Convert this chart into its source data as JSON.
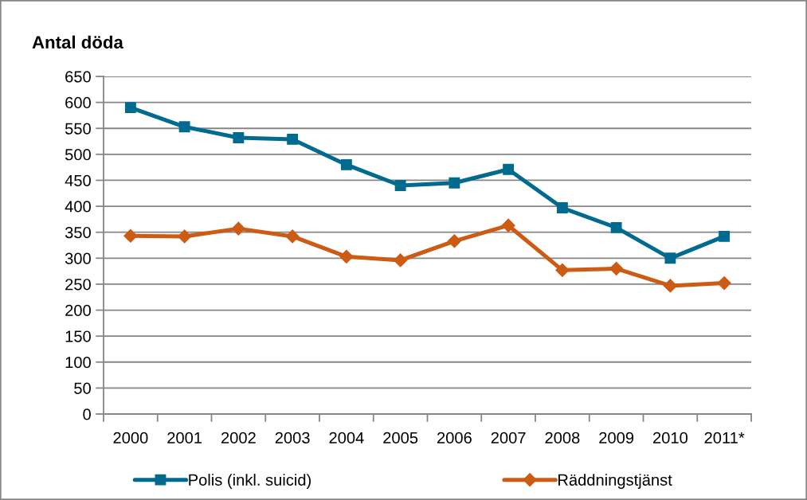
{
  "chart_data": {
    "type": "line",
    "ylabel": "Antal döda",
    "categories": [
      "2000",
      "2001",
      "2002",
      "2003",
      "2004",
      "2005",
      "2006",
      "2007",
      "2008",
      "2009",
      "2010",
      "2011*"
    ],
    "series": [
      {
        "name": "Polis (inkl. suicid)",
        "color": "#006b8f",
        "marker": "square",
        "values": [
          590,
          553,
          532,
          529,
          480,
          440,
          445,
          471,
          397,
          359,
          300,
          342
        ]
      },
      {
        "name": "Räddningstjänst",
        "color": "#cc5b14",
        "marker": "diamond",
        "values": [
          343,
          342,
          357,
          342,
          303,
          296,
          333,
          363,
          277,
          280,
          247,
          252
        ]
      }
    ],
    "ylim": [
      0,
      650
    ],
    "yticks": [
      0,
      50,
      100,
      150,
      200,
      250,
      300,
      350,
      400,
      450,
      500,
      550,
      600,
      650
    ],
    "grid": "y",
    "legend": "bottom",
    "line_style": "solid"
  }
}
